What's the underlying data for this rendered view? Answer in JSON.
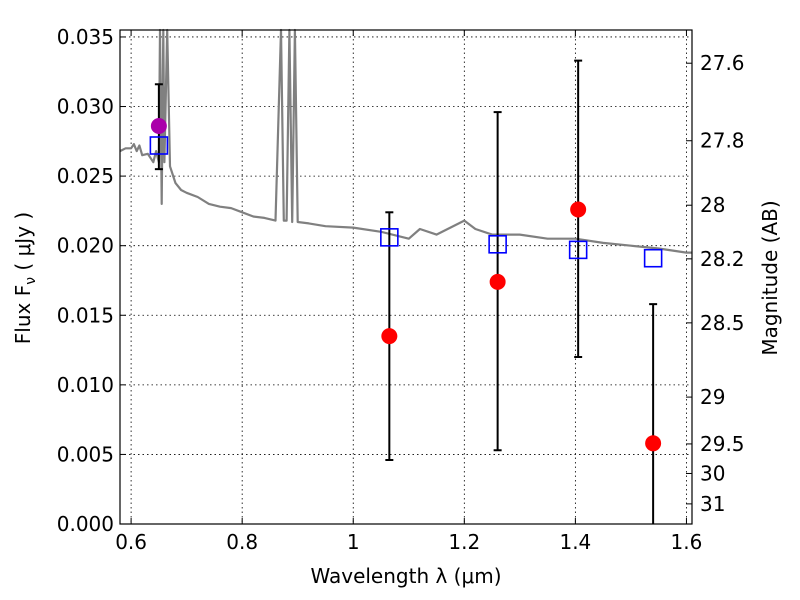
{
  "chart_data": {
    "type": "scatter",
    "title": "",
    "xlabel": "Wavelength  λ (μm)",
    "ylabel": "Flux  F",
    "ylabel_sub": "ν",
    "ylabel_unit": "  ( μJy )",
    "y2label": "Magnitude (AB)",
    "xlim": [
      0.58,
      1.61
    ],
    "ylim": [
      0.0,
      0.0355
    ],
    "grid": true,
    "x_ticks": [
      0.6,
      0.8,
      1.0,
      1.2,
      1.4,
      1.6
    ],
    "x_tick_labels": [
      "0.6",
      "0.8",
      "1",
      "1.2",
      "1.4",
      "1.6"
    ],
    "y_ticks": [
      0.0,
      0.005,
      0.01,
      0.015,
      0.02,
      0.025,
      0.03,
      0.035
    ],
    "y_tick_labels": [
      "0.000",
      "0.005",
      "0.010",
      "0.015",
      "0.020",
      "0.025",
      "0.030",
      "0.035"
    ],
    "mag_ticks": [
      27.6,
      27.8,
      28.0,
      28.2,
      28.5,
      29.0,
      29.5,
      30.0,
      31.0
    ],
    "mag_tick_labels": [
      "27.6",
      "27.8",
      "28",
      "28.2",
      "28.5",
      "29",
      "29.5",
      "30",
      "31"
    ],
    "series": [
      {
        "role": "model_sed",
        "color": "#808080",
        "x": [
          0.58,
          0.59,
          0.6,
          0.605,
          0.61,
          0.615,
          0.62,
          0.63,
          0.64,
          0.645,
          0.65,
          0.652,
          0.655,
          0.658,
          0.66,
          0.665,
          0.67,
          0.68,
          0.69,
          0.7,
          0.72,
          0.74,
          0.76,
          0.78,
          0.8,
          0.82,
          0.84,
          0.86,
          0.87,
          0.875,
          0.88,
          0.885,
          0.89,
          0.895,
          0.9,
          0.92,
          0.95,
          1.0,
          1.05,
          1.1,
          1.12,
          1.15,
          1.2,
          1.22,
          1.25,
          1.3,
          1.35,
          1.4,
          1.45,
          1.5,
          1.55,
          1.6,
          1.61
        ],
        "y": [
          0.0268,
          0.027,
          0.027,
          0.0273,
          0.0268,
          0.0272,
          0.0265,
          0.0266,
          0.026,
          0.0268,
          0.026,
          0.0355,
          0.023,
          0.0355,
          0.026,
          0.0355,
          0.0257,
          0.0245,
          0.024,
          0.0238,
          0.0235,
          0.023,
          0.0228,
          0.0227,
          0.0224,
          0.0221,
          0.022,
          0.0218,
          0.0355,
          0.0218,
          0.0218,
          0.0355,
          0.0217,
          0.0355,
          0.0217,
          0.0216,
          0.0214,
          0.0213,
          0.021,
          0.0205,
          0.0212,
          0.0208,
          0.0218,
          0.0212,
          0.0208,
          0.0208,
          0.0205,
          0.0205,
          0.0202,
          0.02,
          0.0198,
          0.0195,
          0.0195
        ]
      },
      {
        "role": "model_flux",
        "color": "#0000ff",
        "marker": "open-square",
        "x": [
          0.65,
          1.065,
          1.26,
          1.405,
          1.54
        ],
        "y": [
          0.0272,
          0.0206,
          0.0201,
          0.0197,
          0.0191
        ]
      },
      {
        "role": "observed_flux",
        "color": "#ff0000",
        "marker": "filled-circle",
        "x": [
          1.065,
          1.26,
          1.405,
          1.54
        ],
        "y": [
          0.0135,
          0.0174,
          0.0226,
          0.0058
        ],
        "yerr_low": [
          0.0046,
          0.0053,
          0.012,
          0.0
        ],
        "yerr_high": [
          0.0224,
          0.0296,
          0.0333,
          0.0158
        ]
      },
      {
        "role": "observed_flux_alt",
        "color": "#aa00aa",
        "marker": "filled-circle",
        "x": [
          0.65
        ],
        "y": [
          0.0286
        ],
        "yerr_low": [
          0.0255
        ],
        "yerr_high": [
          0.0316
        ]
      }
    ]
  }
}
